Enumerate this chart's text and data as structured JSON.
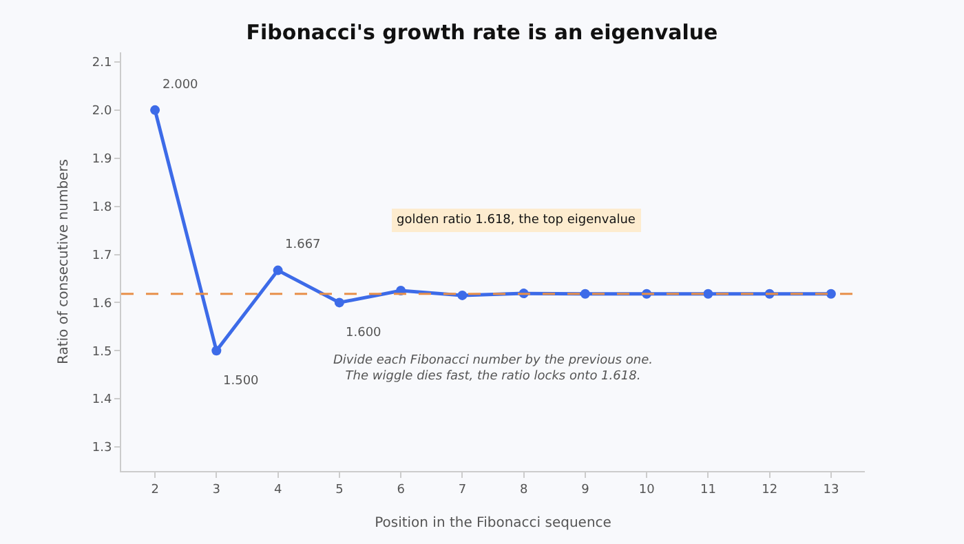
{
  "chart_data": {
    "type": "line",
    "title": "Fibonacci's growth rate is an eigenvalue",
    "xlabel": "Position in the Fibonacci sequence",
    "ylabel": "Ratio of consecutive numbers",
    "x": [
      2,
      3,
      4,
      5,
      6,
      7,
      8,
      9,
      10,
      11,
      12,
      13
    ],
    "series": [
      {
        "color": "#3d6be8",
        "values": [
          2.0,
          1.5,
          1.667,
          1.6,
          1.625,
          1.615,
          1.619,
          1.618,
          1.618,
          1.618,
          1.618,
          1.618
        ],
        "value_labels": [
          "2.000",
          "1.500",
          "1.667",
          "1.600",
          null,
          null,
          null,
          null,
          null,
          null,
          null,
          null
        ]
      }
    ],
    "xlim": [
      1.45,
      13.55
    ],
    "xticks": [
      2,
      3,
      4,
      5,
      6,
      7,
      8,
      9,
      10,
      11,
      12,
      13
    ],
    "ylim": [
      1.25,
      2.12
    ],
    "yticks": [
      1.3,
      1.4,
      1.5,
      1.6,
      1.7,
      1.8,
      1.9,
      {
        "value": 2.0,
        "label": "2.0"
      },
      2.1
    ],
    "ref_lines": [
      {
        "axis": "y",
        "value": 1.618,
        "color": "#e8904a",
        "line_style": "dashed"
      }
    ],
    "annotations": [
      "golden ratio 1.618, the top eigenvalue",
      "Divide each Fibonacci number by the previous one.\nThe wiggle dies fast, the ratio locks onto 1.618."
    ],
    "marker": "circle",
    "line_style": "solid",
    "grid": false
  }
}
